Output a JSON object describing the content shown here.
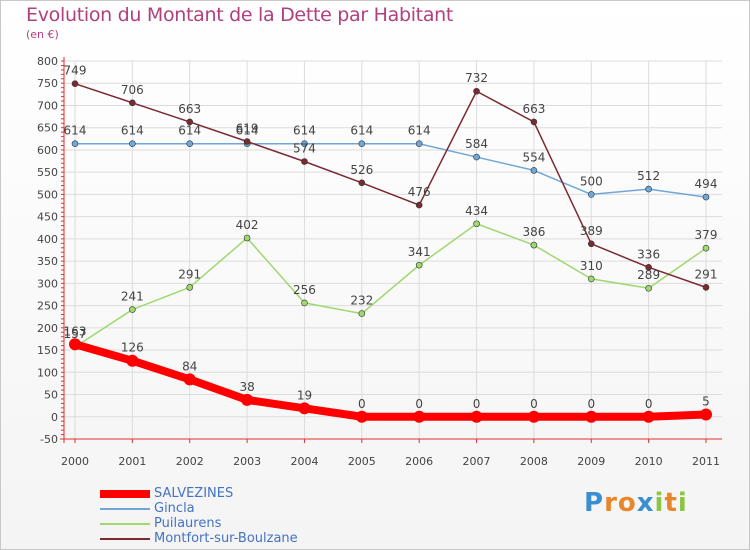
{
  "title": "Evolution du Montant de la Dette par Habitant",
  "subtitle": "(en €)",
  "logo": {
    "text": "Proxiti",
    "letters": [
      "P",
      "r",
      "o",
      "x",
      "i",
      "t",
      "i"
    ],
    "colors": [
      "#3a8fd0",
      "#e8862a",
      "#e8862a",
      "#3a8fd0",
      "#8cc63f",
      "#e8862a",
      "#8cc63f"
    ]
  },
  "chart_data": {
    "type": "line",
    "x": [
      "2000",
      "2001",
      "2002",
      "2003",
      "2004",
      "2005",
      "2006",
      "2007",
      "2008",
      "2009",
      "2010",
      "2011"
    ],
    "ylim": [
      -50,
      800
    ],
    "yticks": [
      -50,
      0,
      50,
      100,
      150,
      200,
      250,
      300,
      350,
      400,
      450,
      500,
      550,
      600,
      650,
      700,
      750,
      800
    ],
    "grid": true,
    "legend_position": "bottom-left",
    "series": [
      {
        "name": "SALVEZINES",
        "color": "#ff0000",
        "values": [
          163,
          126,
          84,
          38,
          19,
          0,
          0,
          0,
          0,
          0,
          0,
          5
        ],
        "thick": true
      },
      {
        "name": "Gincla",
        "color": "#6fa8d8",
        "values": [
          614,
          614,
          614,
          614,
          614,
          614,
          614,
          584,
          554,
          500,
          512,
          494
        ]
      },
      {
        "name": "Puilaurens",
        "color": "#9fd86f",
        "values": [
          157,
          241,
          291,
          402,
          256,
          232,
          341,
          434,
          386,
          310,
          289,
          379
        ]
      },
      {
        "name": "Montfort-sur-Boulzane",
        "color": "#7a2a33",
        "values": [
          749,
          706,
          663,
          619,
          574,
          526,
          476,
          732,
          663,
          389,
          336,
          291
        ]
      }
    ]
  }
}
